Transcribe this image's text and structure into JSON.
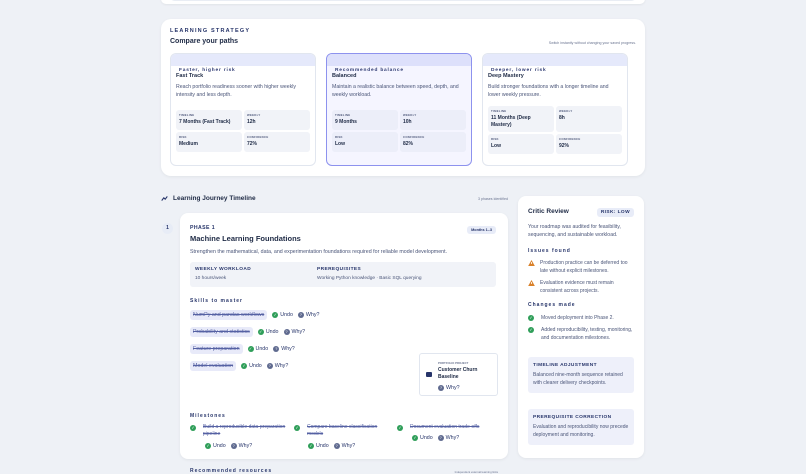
{
  "strategy": {
    "eyebrow": "Learning Strategy",
    "title": "Compare your paths",
    "note": "Switch instantly without changing your saved progress.",
    "paths": [
      {
        "band": "Faster, higher risk",
        "name": "Fast Track",
        "desc": "Reach portfolio readiness sooner with higher weekly intensity and less depth.",
        "timeline_k": "TIMELINE",
        "timeline": "7 Months (Fast Track)",
        "weekly_k": "WEEKLY",
        "weekly": "12h",
        "risk_k": "RISK",
        "risk": "Medium",
        "conf_k": "CONFIDENCE",
        "conf": "72%"
      },
      {
        "band": "Recommended balance",
        "name": "Balanced",
        "desc": "Maintain a realistic balance between speed, depth, and weekly workload.",
        "timeline_k": "TIMELINE",
        "timeline": "9 Months",
        "weekly_k": "WEEKLY",
        "weekly": "10h",
        "risk_k": "RISK",
        "risk": "Low",
        "conf_k": "CONFIDENCE",
        "conf": "82%"
      },
      {
        "band": "Deeper, lower risk",
        "name": "Deep Mastery",
        "desc": "Build stronger foundations with a longer timeline and lower weekly pressure.",
        "timeline_k": "TIMELINE",
        "timeline": "11 Months (Deep Mastery)",
        "weekly_k": "WEEKLY",
        "weekly": "8h",
        "risk_k": "RISK",
        "risk": "Low",
        "conf_k": "CONFIDENCE",
        "conf": "92%"
      }
    ]
  },
  "timeline": {
    "title": "Learning Journey Timeline",
    "count": "3 phases identified",
    "step": "1",
    "phase": {
      "label": "PHASE 1",
      "title": "Machine Learning Foundations",
      "months": "Months 1–3",
      "desc": "Strengthen the mathematical, data, and experimentation foundations required for reliable model development.",
      "workload_k": "WEEKLY WORKLOAD",
      "workload_v": "10 hours/week",
      "prereq_k": "PREREQUISITES",
      "prereq_v": "Working Python knowledge · Basic SQL querying",
      "skills_k": "Skills to master",
      "skills": [
        "NumPy and pandas workflows",
        "Probability and statistics",
        "Feature preparation",
        "Model evaluation"
      ],
      "undo": "Undo",
      "why": "Why?",
      "portfolio_k": "PORTFOLIO PROJECT",
      "portfolio_v": "Customer Churn Baseline",
      "milestones_k": "Milestones",
      "milestones": [
        "Build a reproducible data-preparation pipeline",
        "Compare baseline classification models",
        "Document evaluation trade-offs"
      ],
      "resources_k": "Recommended resources",
      "foot": "Independent external learning links"
    }
  },
  "critic": {
    "title": "Critic Review",
    "risk": "RISK: LOW",
    "desc": "Your roadmap was audited for feasibility, sequencing, and sustainable workload.",
    "issues_k": "Issues found",
    "issues": [
      "Production practice can be deferred too late without explicit milestones.",
      "Evaluation evidence must remain consistent across projects."
    ],
    "changes_k": "Changes made",
    "changes": [
      "Moved deployment into Phase 2.",
      "Added reproducibility, testing, monitoring, and documentation milestones."
    ],
    "notes": [
      {
        "k": "TIMELINE ADJUSTMENT",
        "v": "Balanced nine-month sequence retained with clearer delivery checkpoints."
      },
      {
        "k": "PREREQUISITE CORRECTION",
        "v": "Evaluation and reproducibility now precede deployment and monitoring."
      }
    ]
  }
}
